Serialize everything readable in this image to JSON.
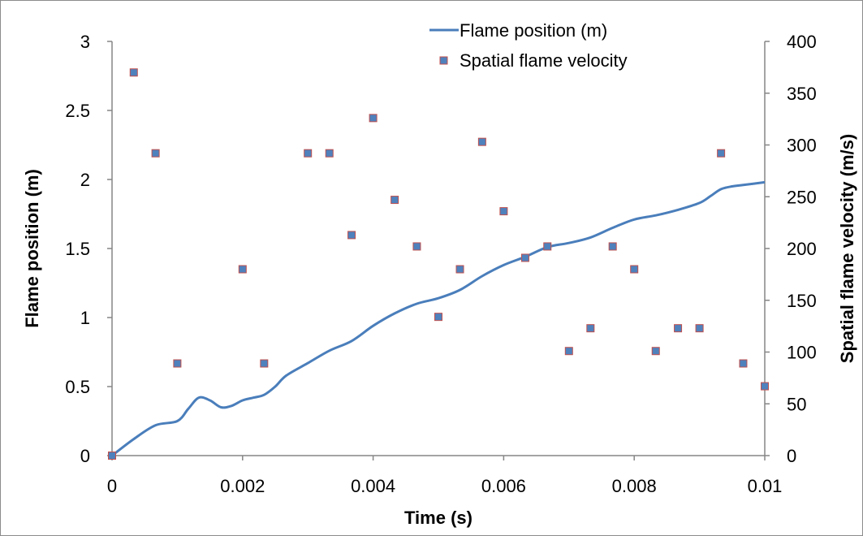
{
  "chart_data": {
    "type": "line",
    "title": "",
    "xlabel": "Time (s)",
    "ylabel_left": "Flame position (m)",
    "ylabel_right": "Spatial flame velocity (m/s)",
    "xlim": [
      0,
      0.01
    ],
    "ylim_left": [
      0,
      3
    ],
    "ylim_right": [
      0,
      400
    ],
    "x_ticks": [
      "0",
      "0.002",
      "0.004",
      "0.006",
      "0.008",
      "0.01"
    ],
    "y_left_ticks": [
      "0",
      "0.5",
      "1",
      "1.5",
      "2",
      "2.5",
      "3"
    ],
    "y_right_ticks": [
      "0",
      "50",
      "100",
      "150",
      "200",
      "250",
      "300",
      "350",
      "400"
    ],
    "grid": false,
    "legend": {
      "position": "top-right",
      "items": [
        "Flame position (m)",
        "Spatial flame velocity"
      ]
    },
    "series": [
      {
        "name": "Flame position (m)",
        "kind": "line",
        "axis": "left",
        "color": "#4a7ebb",
        "x": [
          0,
          0.000333,
          0.000667,
          0.001,
          0.00117,
          0.00133,
          0.0015,
          0.00167,
          0.00183,
          0.002,
          0.00217,
          0.00233,
          0.0025,
          0.00267,
          0.003,
          0.00333,
          0.00367,
          0.004,
          0.00433,
          0.00467,
          0.005,
          0.00533,
          0.00567,
          0.006,
          0.00633,
          0.00667,
          0.007,
          0.00733,
          0.00767,
          0.008,
          0.00833,
          0.00867,
          0.009,
          0.00917,
          0.00933,
          0.0095,
          0.00967,
          0.01
        ],
        "y": [
          0,
          0.12,
          0.22,
          0.25,
          0.34,
          0.42,
          0.4,
          0.35,
          0.36,
          0.4,
          0.42,
          0.44,
          0.5,
          0.58,
          0.67,
          0.76,
          0.83,
          0.94,
          1.03,
          1.1,
          1.14,
          1.2,
          1.3,
          1.38,
          1.44,
          1.51,
          1.54,
          1.58,
          1.65,
          1.71,
          1.74,
          1.78,
          1.83,
          1.88,
          1.93,
          1.95,
          1.96,
          1.98
        ]
      },
      {
        "name": "Spatial flame velocity",
        "kind": "scatter",
        "axis": "right",
        "color": "#4f81bd",
        "edge_color": "#c0504d",
        "x": [
          0,
          0.000333,
          0.000667,
          0.001,
          0.002,
          0.00233,
          0.003,
          0.00333,
          0.00367,
          0.004,
          0.00433,
          0.00467,
          0.005,
          0.00533,
          0.00567,
          0.006,
          0.00633,
          0.00667,
          0.007,
          0.00733,
          0.00767,
          0.008,
          0.00833,
          0.00867,
          0.009,
          0.00933,
          0.00967,
          0.01
        ],
        "y": [
          0,
          370,
          292,
          89,
          180,
          89,
          292,
          292,
          213,
          326,
          247,
          202,
          134,
          180,
          303,
          236,
          191,
          202,
          101,
          123,
          202,
          180,
          101,
          123,
          123,
          292,
          89,
          67
        ]
      }
    ]
  }
}
